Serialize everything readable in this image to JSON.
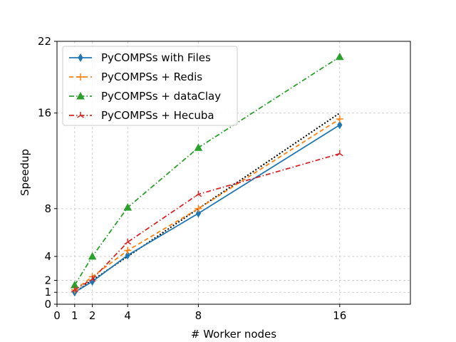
{
  "chart_data": {
    "type": "line",
    "xlabel": "# Worker nodes",
    "ylabel": "Speedup",
    "xlim": [
      0,
      20
    ],
    "ylim": [
      0,
      22
    ],
    "xticks": [
      0,
      1,
      2,
      4,
      8,
      16
    ],
    "yticks": [
      0,
      1,
      2,
      4,
      8,
      16,
      22
    ],
    "grid": true,
    "legend_position": "top-left",
    "x": [
      1,
      2,
      4,
      8,
      16
    ],
    "ideal": {
      "x": [
        1,
        16
      ],
      "y": [
        1,
        16
      ],
      "color": "#000000",
      "style": "dotted"
    },
    "series": [
      {
        "name": "PyCOMPSs with Files",
        "values": [
          1.0,
          1.9,
          4.1,
          7.6,
          15.0
        ],
        "color": "#1f77b4",
        "style": "solid",
        "marker": "thin-diamond"
      },
      {
        "name": "PyCOMPSs + Redis",
        "values": [
          1.2,
          2.3,
          4.5,
          8.0,
          15.5
        ],
        "color": "#ff7f0e",
        "style": "dashed",
        "marker": "plus"
      },
      {
        "name": "PyCOMPSs + dataClay",
        "values": [
          1.6,
          4.0,
          8.1,
          13.1,
          20.7
        ],
        "color": "#2ca02c",
        "style": "dashdot",
        "marker": "triangle"
      },
      {
        "name": "PyCOMPSs + Hecuba",
        "values": [
          1.2,
          2.1,
          5.2,
          9.2,
          12.6
        ],
        "color": "#d62728",
        "style": "dashdot",
        "marker": "tri"
      }
    ]
  }
}
